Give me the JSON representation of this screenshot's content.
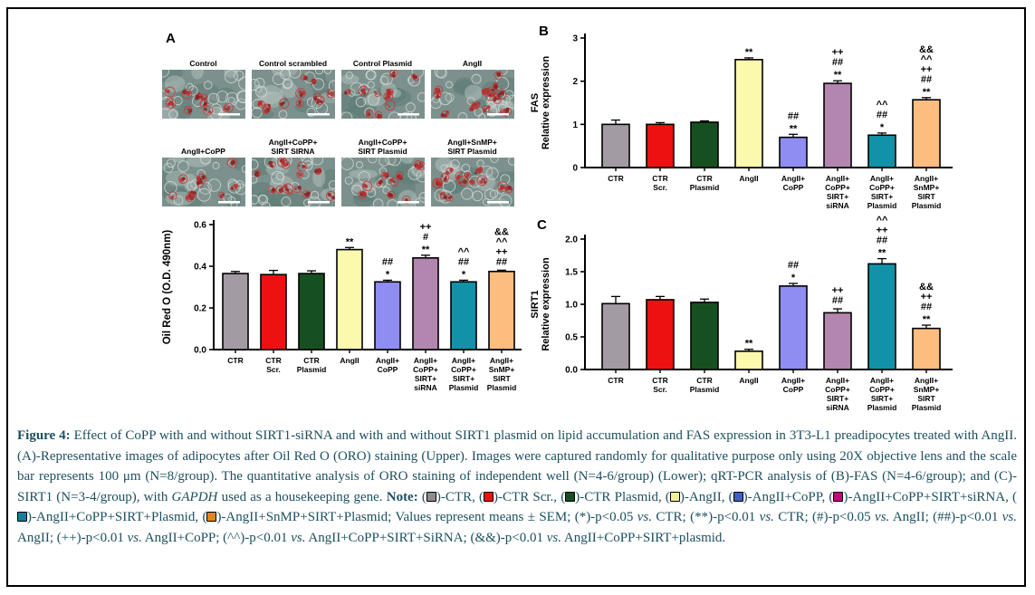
{
  "panel_a": {
    "label": "A",
    "images": [
      {
        "lines": [
          "Control"
        ],
        "stain": 10
      },
      {
        "lines": [
          "Control scrambled"
        ],
        "stain": 11
      },
      {
        "lines": [
          "Control Plasmid"
        ],
        "stain": 10
      },
      {
        "lines": [
          "AngII"
        ],
        "stain": 15
      },
      {
        "lines": [
          "AngII+CoPP"
        ],
        "stain": 9
      },
      {
        "lines": [
          "AngII+CoPP+",
          "SIRT SIRNA"
        ],
        "stain": 14
      },
      {
        "lines": [
          "AngII+CoPP+",
          "SIRT Plasmid"
        ],
        "stain": 11
      },
      {
        "lines": [
          "AngII+SnMP+",
          "SIRT Plasmid"
        ],
        "stain": 14
      }
    ]
  },
  "bar_colors": [
    "#a39ba4",
    "#ee1111",
    "#175020",
    "#fbf9ae",
    "#8f8df1",
    "#b286ae",
    "#1292a8",
    "#fcbd7f"
  ],
  "chart_data": [
    {
      "id": "oro",
      "type": "bar",
      "panel_label": "",
      "ylabel_lines": [
        "Oil Red O (O.D. 490nm)"
      ],
      "ylim": [
        0,
        0.6
      ],
      "yticks": [
        0,
        0.2,
        0.4,
        0.6
      ],
      "ytick_labels": [
        "0.0",
        "0.2",
        "0.4",
        "0.6"
      ],
      "categories": [
        [
          "CTR"
        ],
        [
          "CTR",
          "Scr."
        ],
        [
          "CTR",
          "Plasmid"
        ],
        [
          "AngII"
        ],
        [
          "AngII+",
          "CoPP"
        ],
        [
          "AngII+",
          "CoPP+",
          "SIRT+",
          "siRNA"
        ],
        [
          "AngII+",
          "CoPP+",
          "SIRT+",
          "Plasmid"
        ],
        [
          "AngII+",
          "SnMP+",
          "SIRT",
          "Plasmid"
        ]
      ],
      "values": [
        0.365,
        0.36,
        0.365,
        0.48,
        0.325,
        0.44,
        0.325,
        0.375
      ],
      "errors": [
        0.01,
        0.02,
        0.013,
        0.01,
        0.008,
        0.013,
        0.008,
        0.006
      ],
      "sig": [
        [],
        [],
        [],
        [
          "**"
        ],
        [
          "##",
          "*"
        ],
        [
          "++",
          "#",
          "**"
        ],
        [
          "^^",
          "##",
          "*"
        ],
        [
          "&&",
          "^^",
          "++",
          "##"
        ]
      ],
      "grid": false,
      "legend": "none"
    },
    {
      "id": "fas",
      "type": "bar",
      "panel_label": "B",
      "ylabel_lines": [
        "FAS",
        "Relative expression"
      ],
      "ylim": [
        0,
        3
      ],
      "yticks": [
        0,
        1,
        2,
        3
      ],
      "ytick_labels": [
        "0",
        "1",
        "2",
        "3"
      ],
      "categories": [
        [
          "CTR"
        ],
        [
          "CTR",
          "Scr."
        ],
        [
          "CTR",
          "Plasmid"
        ],
        [
          "AngII"
        ],
        [
          "AngII+",
          "CoPP"
        ],
        [
          "AngII+",
          "CoPP+",
          "SIRT+",
          "siRNA"
        ],
        [
          "AngII+",
          "CoPP+",
          "SIRT+",
          "Plasmid"
        ],
        [
          "AngII+",
          "SnMP+",
          "SIRT",
          "Plasmid"
        ]
      ],
      "values": [
        1.0,
        1.0,
        1.05,
        2.5,
        0.7,
        1.95,
        0.75,
        1.57
      ],
      "errors": [
        0.1,
        0.04,
        0.03,
        0.04,
        0.07,
        0.06,
        0.05,
        0.05
      ],
      "sig": [
        [],
        [],
        [],
        [
          "**"
        ],
        [
          "##",
          "**"
        ],
        [
          "++",
          "##",
          "**"
        ],
        [
          "^^",
          "##",
          "*"
        ],
        [
          "&&",
          "^^",
          "++",
          "##",
          "**"
        ]
      ],
      "grid": false,
      "legend": "none"
    },
    {
      "id": "sirt1",
      "type": "bar",
      "panel_label": "C",
      "ylabel_lines": [
        "SIRT1",
        "Relative expression"
      ],
      "ylim": [
        0,
        2
      ],
      "yticks": [
        0,
        0.5,
        1.0,
        1.5,
        2.0
      ],
      "ytick_labels": [
        "0.0",
        "0.5",
        "1.0",
        "1.5",
        "2.0"
      ],
      "categories": [
        [
          "CTR"
        ],
        [
          "CTR",
          "Scr."
        ],
        [
          "CTR",
          "Plasmid"
        ],
        [
          "AngII"
        ],
        [
          "AngII+",
          "CoPP"
        ],
        [
          "AngII+",
          "CoPP+",
          "SIRT+",
          "siRNA"
        ],
        [
          "AngII+",
          "CoPP+",
          "SIRT+",
          "Plasmid"
        ],
        [
          "AngII+",
          "SnMP+",
          "SIRT",
          "Plasmid"
        ]
      ],
      "values": [
        1.01,
        1.07,
        1.03,
        0.28,
        1.28,
        0.87,
        1.62,
        0.63
      ],
      "errors": [
        0.11,
        0.05,
        0.05,
        0.03,
        0.04,
        0.06,
        0.08,
        0.05
      ],
      "sig": [
        [],
        [],
        [],
        [
          "**"
        ],
        [
          "##",
          "*"
        ],
        [
          "++",
          "##"
        ],
        [
          "^^",
          "++",
          "##",
          "**"
        ],
        [
          "&&",
          "++",
          "##",
          "**"
        ]
      ],
      "grid": false,
      "legend": "none"
    }
  ],
  "caption": {
    "segments": [
      {
        "t": "Figure 4:",
        "b": true
      },
      {
        "t": " Effect of CoPP with and without SIRT1-siRNA and with and without SIRT1 plasmid on lipid accumulation and FAS expression in 3T3-L1 preadipocytes treated with AngII. (A)-Representative images of adipocytes after Oil Red O (ORO) staining (Upper). Images were captured randomly for qualitative purpose only using 20X objective lens and the scale bar represents 100 μm (N=8/group). The quantitative analysis of ORO staining of independent well (N=4-6/group) (Lower); qRT-PCR analysis of (B)-FAS (N=4-6/group); and (C)-SIRT1 (N=3-4/group), with "
      },
      {
        "t": "GAPDH",
        "i": true
      },
      {
        "t": " used as a housekeeping gene. "
      },
      {
        "t": "Note:",
        "b": true
      },
      {
        "t": " ("
      },
      {
        "sw": "#8c8c8c"
      },
      {
        "t": ")-CTR, ("
      },
      {
        "sw": "#ee1111"
      },
      {
        "t": ")-CTR Scr., ("
      },
      {
        "sw": "#175020"
      },
      {
        "t": ")-CTR Plasmid, ("
      },
      {
        "sw": "#f1ee9e"
      },
      {
        "t": ")-AngII, ("
      },
      {
        "sw": "#3f5fc2"
      },
      {
        "t": ")-AngII+CoPP, ("
      },
      {
        "sw": "#c80278"
      },
      {
        "t": ")-AngII+CoPP+SIRT+siRNA, ("
      },
      {
        "sw": "#15809c"
      },
      {
        "t": ")-AngII+CoPP+SIRT+Plasmid, ("
      },
      {
        "sw": "#e0861f"
      },
      {
        "t": ")-AngII+SnMP+SIRT+Plasmid; Values represent means ± SEM; (*)-p<0.05 "
      },
      {
        "t": "vs.",
        "i": true
      },
      {
        "t": " CTR; (**)-p<0.01 "
      },
      {
        "t": "vs.",
        "i": true
      },
      {
        "t": " CTR; (#)-p<0.05 "
      },
      {
        "t": "vs.",
        "i": true
      },
      {
        "t": " AngII; (##)-p<0.01 "
      },
      {
        "t": "vs.",
        "i": true
      },
      {
        "t": " AngII; (++)-p<0.01 "
      },
      {
        "t": "vs.",
        "i": true
      },
      {
        "t": " AngII+CoPP; (^^)-p<0.01 "
      },
      {
        "t": "vs.",
        "i": true
      },
      {
        "t": " AngII+CoPP+SIRT+SiRNA; (&&)-p<0.01 "
      },
      {
        "t": "vs.",
        "i": true
      },
      {
        "t": " AngII+CoPP+SIRT+plasmid."
      }
    ]
  }
}
